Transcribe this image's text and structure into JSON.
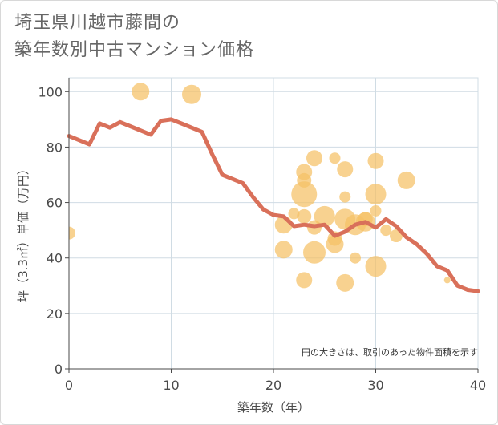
{
  "title_lines": [
    "埼玉県川越市藤間の",
    "築年数別中古マンション価格"
  ],
  "chart_data": {
    "type": "scatter",
    "xlabel": "築年数（年）",
    "ylabel": "坪（3.3㎡）単価（万円）",
    "xlim": [
      0,
      40
    ],
    "ylim": [
      0,
      105
    ],
    "xticks": [
      0,
      10,
      20,
      30,
      40
    ],
    "yticks": [
      0,
      20,
      40,
      60,
      80,
      100
    ],
    "grid": true,
    "note": "円の大きさは、取引のあった物件面積を示す",
    "colors": {
      "bubble": "#f5c065",
      "line": "#d9705a",
      "grid": "#d0dce4",
      "axis": "#4a4a4a"
    },
    "bubbles": [
      {
        "x": 0,
        "y": 49,
        "size": 8
      },
      {
        "x": 7,
        "y": 100,
        "size": 11
      },
      {
        "x": 12,
        "y": 99,
        "size": 12
      },
      {
        "x": 21,
        "y": 52,
        "size": 11
      },
      {
        "x": 21,
        "y": 43,
        "size": 11
      },
      {
        "x": 22,
        "y": 56,
        "size": 7
      },
      {
        "x": 23,
        "y": 71,
        "size": 10
      },
      {
        "x": 23,
        "y": 68,
        "size": 9
      },
      {
        "x": 23,
        "y": 63,
        "size": 16
      },
      {
        "x": 23,
        "y": 55,
        "size": 9
      },
      {
        "x": 23,
        "y": 32,
        "size": 10
      },
      {
        "x": 24,
        "y": 76,
        "size": 10
      },
      {
        "x": 24,
        "y": 51,
        "size": 9
      },
      {
        "x": 24,
        "y": 42,
        "size": 14
      },
      {
        "x": 25,
        "y": 55,
        "size": 13
      },
      {
        "x": 26,
        "y": 76,
        "size": 7
      },
      {
        "x": 26,
        "y": 47,
        "size": 9
      },
      {
        "x": 26,
        "y": 45,
        "size": 11
      },
      {
        "x": 27,
        "y": 72,
        "size": 10
      },
      {
        "x": 27,
        "y": 62,
        "size": 7
      },
      {
        "x": 27,
        "y": 54,
        "size": 13
      },
      {
        "x": 27,
        "y": 31,
        "size": 11
      },
      {
        "x": 28,
        "y": 52,
        "size": 13
      },
      {
        "x": 28,
        "y": 40,
        "size": 7
      },
      {
        "x": 29,
        "y": 54,
        "size": 9
      },
      {
        "x": 29,
        "y": 53,
        "size": 12
      },
      {
        "x": 30,
        "y": 75,
        "size": 10
      },
      {
        "x": 30,
        "y": 63,
        "size": 13
      },
      {
        "x": 30,
        "y": 57,
        "size": 7
      },
      {
        "x": 30,
        "y": 37,
        "size": 13
      },
      {
        "x": 31,
        "y": 50,
        "size": 7
      },
      {
        "x": 32,
        "y": 48,
        "size": 8
      },
      {
        "x": 33,
        "y": 68,
        "size": 11
      },
      {
        "x": 37,
        "y": 32,
        "size": 4
      }
    ],
    "line": [
      {
        "x": 0,
        "y": 84
      },
      {
        "x": 1,
        "y": 82.5
      },
      {
        "x": 2,
        "y": 81
      },
      {
        "x": 3,
        "y": 88.5
      },
      {
        "x": 4,
        "y": 87
      },
      {
        "x": 5,
        "y": 89
      },
      {
        "x": 6,
        "y": 87.5
      },
      {
        "x": 7,
        "y": 86
      },
      {
        "x": 8,
        "y": 84.5
      },
      {
        "x": 9,
        "y": 89.5
      },
      {
        "x": 10,
        "y": 90
      },
      {
        "x": 11,
        "y": 88.5
      },
      {
        "x": 12,
        "y": 87
      },
      {
        "x": 13,
        "y": 85.5
      },
      {
        "x": 14,
        "y": 77.5
      },
      {
        "x": 15,
        "y": 70
      },
      {
        "x": 16,
        "y": 68.5
      },
      {
        "x": 17,
        "y": 67
      },
      {
        "x": 18,
        "y": 62
      },
      {
        "x": 19,
        "y": 57.5
      },
      {
        "x": 20,
        "y": 55.5
      },
      {
        "x": 21,
        "y": 55
      },
      {
        "x": 22,
        "y": 51.5
      },
      {
        "x": 23,
        "y": 52
      },
      {
        "x": 24,
        "y": 51.5
      },
      {
        "x": 25,
        "y": 52
      },
      {
        "x": 26,
        "y": 48
      },
      {
        "x": 27,
        "y": 49.5
      },
      {
        "x": 28,
        "y": 52
      },
      {
        "x": 29,
        "y": 53
      },
      {
        "x": 30,
        "y": 51
      },
      {
        "x": 31,
        "y": 54
      },
      {
        "x": 32,
        "y": 51.5
      },
      {
        "x": 33,
        "y": 47.5
      },
      {
        "x": 34,
        "y": 45
      },
      {
        "x": 35,
        "y": 41.5
      },
      {
        "x": 36,
        "y": 37
      },
      {
        "x": 37,
        "y": 35.5
      },
      {
        "x": 38,
        "y": 30
      },
      {
        "x": 39,
        "y": 28.5
      },
      {
        "x": 40,
        "y": 28
      }
    ]
  }
}
